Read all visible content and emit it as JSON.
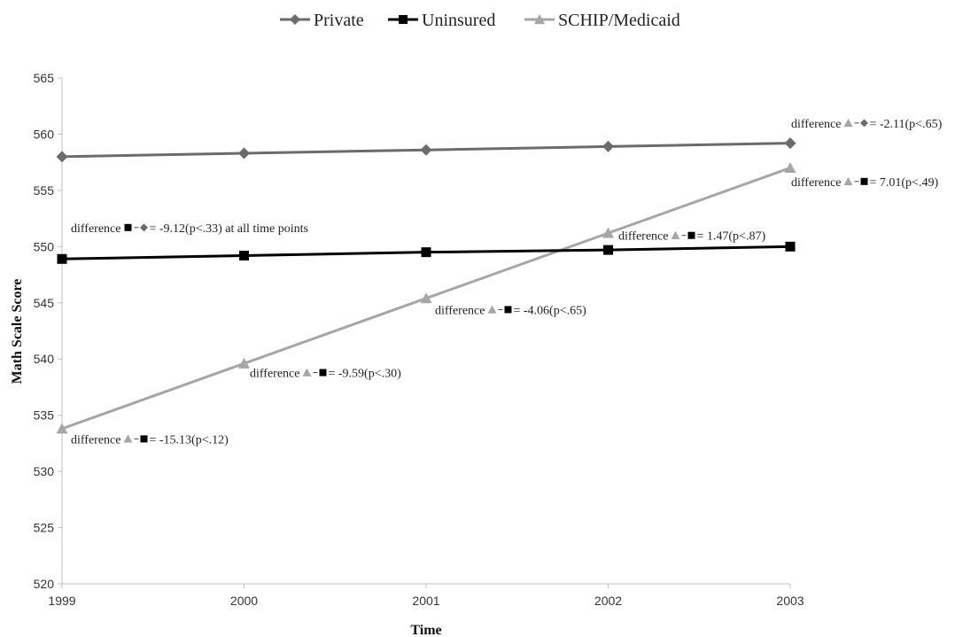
{
  "chart_data": {
    "type": "line",
    "title": "",
    "xlabel": "Time",
    "ylabel": "Math Scale Score",
    "x": [
      "1999",
      "2000",
      "2001",
      "2002",
      "2003"
    ],
    "ylim": [
      520,
      565
    ],
    "yticks": [
      "520",
      "525",
      "530",
      "535",
      "540",
      "545",
      "550",
      "555",
      "560",
      "565"
    ],
    "grid": false,
    "legend_position": "top",
    "series": [
      {
        "name": "Private",
        "marker": "diamond",
        "color": "#6b6b6b",
        "values": [
          558.0,
          558.3,
          558.6,
          558.9,
          559.2
        ]
      },
      {
        "name": "Uninsured",
        "marker": "square",
        "color": "#000000",
        "values": [
          548.9,
          549.2,
          549.5,
          549.7,
          550.0
        ]
      },
      {
        "name": "SCHIP/Medicaid",
        "marker": "triangle",
        "color": "#a6a6a6",
        "values": [
          533.8,
          539.6,
          545.4,
          551.2,
          557.0
        ]
      }
    ],
    "annotations": [
      {
        "id": "a0",
        "x": "2003",
        "y": 560.6,
        "prefix": "difference ",
        "m1": "triangle",
        "m2": "diamond",
        "suffix": "= -2.11(p<.65)"
      },
      {
        "id": "a1",
        "x": "2003",
        "y": 555.4,
        "prefix": "difference ",
        "m1": "triangle",
        "m2": "square",
        "suffix": "= 7.01(p<.49)"
      },
      {
        "id": "a2",
        "x": "1999",
        "y": 551.3,
        "prefix": "difference ",
        "m1": "square",
        "m2": "diamond",
        "suffix": "= -9.12(p<.33) at all time points"
      },
      {
        "id": "a3",
        "x": "2002",
        "y": 550.6,
        "prefix": "difference ",
        "m1": "triangle",
        "m2": "square",
        "suffix": "= 1.47(p<.87)"
      },
      {
        "id": "a4",
        "x": "2001",
        "y": 544.0,
        "prefix": "difference ",
        "m1": "triangle",
        "m2": "square",
        "suffix": "= -4.06(p<.65)"
      },
      {
        "id": "a5",
        "x": "2000",
        "y": 538.4,
        "prefix": "difference ",
        "m1": "triangle",
        "m2": "square",
        "suffix": "= -9.59(p<.30)"
      },
      {
        "id": "a6",
        "x": "1999",
        "y": 532.5,
        "prefix": "difference ",
        "m1": "triangle",
        "m2": "square",
        "suffix": "= -15.13(p<.12)"
      }
    ]
  }
}
